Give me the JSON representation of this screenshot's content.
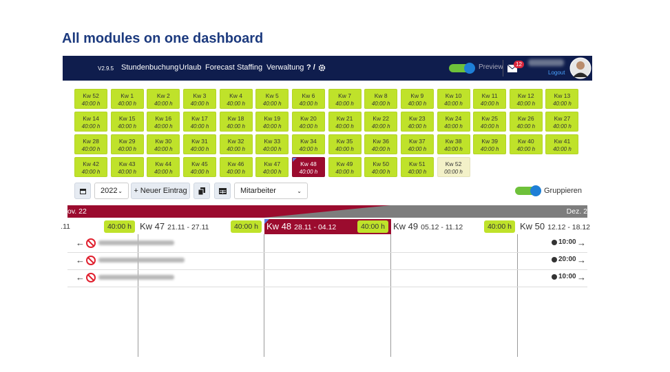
{
  "header": {
    "title": "All modules on one dashboard"
  },
  "nav": {
    "version": "V2.9.5",
    "items": [
      "Stundenbuchung",
      "Urlaub",
      "Forecast",
      "Staffing",
      "Verwaltung"
    ],
    "help": "? /",
    "preview": "Preview",
    "badge": "12",
    "logout": "Logout"
  },
  "weeks": [
    {
      "label": "Kw 52",
      "hours": "40:00 h",
      "color": "#bfe22a"
    },
    {
      "label": "Kw 1",
      "hours": "40:00 h",
      "color": "#bfe22a"
    },
    {
      "label": "Kw 2",
      "hours": "40:00 h",
      "color": "#bfe22a"
    },
    {
      "label": "Kw 3",
      "hours": "40:00 h",
      "color": "#bfe22a"
    },
    {
      "label": "Kw 4",
      "hours": "40:00 h",
      "color": "#bfe22a"
    },
    {
      "label": "Kw 5",
      "hours": "40:00 h",
      "color": "#bfe22a"
    },
    {
      "label": "Kw 6",
      "hours": "40:00 h",
      "color": "#bfe22a"
    },
    {
      "label": "Kw 7",
      "hours": "40:00 h",
      "color": "#bfe22a"
    },
    {
      "label": "Kw 8",
      "hours": "40:00 h",
      "color": "#bfe22a"
    },
    {
      "label": "Kw 9",
      "hours": "40:00 h",
      "color": "#bfe22a"
    },
    {
      "label": "Kw 10",
      "hours": "40:00 h",
      "color": "#bfe22a"
    },
    {
      "label": "Kw 11",
      "hours": "40:00 h",
      "color": "#bfe22a"
    },
    {
      "label": "Kw 12",
      "hours": "40:00 h",
      "color": "#bfe22a"
    },
    {
      "label": "Kw 13",
      "hours": "40:00 h",
      "color": "#bfe22a"
    },
    {
      "label": "Kw 14",
      "hours": "40:00 h",
      "color": "#bfe22a"
    },
    {
      "label": "Kw 15",
      "hours": "40:00 h",
      "color": "#bfe22a"
    },
    {
      "label": "Kw 16",
      "hours": "40:00 h",
      "color": "#bfe22a"
    },
    {
      "label": "Kw 17",
      "hours": "40:00 h",
      "color": "#bfe22a"
    },
    {
      "label": "Kw 18",
      "hours": "40:00 h",
      "color": "#bfe22a"
    },
    {
      "label": "Kw 19",
      "hours": "40:00 h",
      "color": "#bfe22a"
    },
    {
      "label": "Kw 20",
      "hours": "40:00 h",
      "color": "#bfe22a"
    },
    {
      "label": "Kw 21",
      "hours": "40:00 h",
      "color": "#bfe22a"
    },
    {
      "label": "Kw 22",
      "hours": "40:00 h",
      "color": "#bfe22a"
    },
    {
      "label": "Kw 23",
      "hours": "40:00 h",
      "color": "#bfe22a"
    },
    {
      "label": "Kw 24",
      "hours": "40:00 h",
      "color": "#bfe22a"
    },
    {
      "label": "Kw 25",
      "hours": "40:00 h",
      "color": "#bfe22a"
    },
    {
      "label": "Kw 26",
      "hours": "40:00 h",
      "color": "#bfe22a"
    },
    {
      "label": "Kw 27",
      "hours": "40:00 h",
      "color": "#bfe22a"
    },
    {
      "label": "Kw 28",
      "hours": "40:00 h",
      "color": "#bfe22a"
    },
    {
      "label": "Kw 29",
      "hours": "40:00 h",
      "color": "#bfe22a"
    },
    {
      "label": "Kw 30",
      "hours": "40:00 h",
      "color": "#bfe22a"
    },
    {
      "label": "Kw 31",
      "hours": "40:00 h",
      "color": "#bfe22a"
    },
    {
      "label": "Kw 32",
      "hours": "40:00 h",
      "color": "#bfe22a"
    },
    {
      "label": "Kw 33",
      "hours": "40:00 h",
      "color": "#bfe22a"
    },
    {
      "label": "Kw 34",
      "hours": "40:00 h",
      "color": "#bfe22a"
    },
    {
      "label": "Kw 35",
      "hours": "40:00 h",
      "color": "#bfe22a"
    },
    {
      "label": "Kw 36",
      "hours": "40:00 h",
      "color": "#bfe22a"
    },
    {
      "label": "Kw 37",
      "hours": "40:00 h",
      "color": "#bfe22a"
    },
    {
      "label": "Kw 38",
      "hours": "40:00 h",
      "color": "#bfe22a"
    },
    {
      "label": "Kw 39",
      "hours": "40:00 h",
      "color": "#bfe22a"
    },
    {
      "label": "Kw 40",
      "hours": "40:00 h",
      "color": "#bfe22a"
    },
    {
      "label": "Kw 41",
      "hours": "40:00 h",
      "color": "#bfe22a"
    },
    {
      "label": "Kw 42",
      "hours": "40:00 h",
      "color": "#bfe22a"
    },
    {
      "label": "Kw 43",
      "hours": "40:00 h",
      "color": "#bfe22a"
    },
    {
      "label": "Kw 44",
      "hours": "40:00 h",
      "color": "#bfe22a"
    },
    {
      "label": "Kw 45",
      "hours": "40:00 h",
      "color": "#bfe22a"
    },
    {
      "label": "Kw 46",
      "hours": "40:00 h",
      "color": "#bfe22a"
    },
    {
      "label": "Kw 47",
      "hours": "40:00 h",
      "color": "#bfe22a"
    },
    {
      "label": "Kw 48",
      "hours": "40:00 h",
      "color": "#9b0b2e"
    },
    {
      "label": "Kw 49",
      "hours": "40:00 h",
      "color": "#bfe22a"
    },
    {
      "label": "Kw 50",
      "hours": "40:00 h",
      "color": "#bfe22a"
    },
    {
      "label": "Kw 51",
      "hours": "40:00 h",
      "color": "#bfe22a"
    },
    {
      "label": "Kw 52",
      "hours": "00:00 h",
      "color": "#f3f1c8"
    }
  ],
  "toolbar": {
    "year": "2022",
    "new_entry": "+ Neuer Eintrag",
    "filter": "Mitarbeiter",
    "group": "Gruppieren"
  },
  "timeline": {
    "months": [
      "ov. 22",
      "Dez. 2"
    ],
    "weeks": [
      {
        "range": ".11",
        "hours": "40:00 h"
      },
      {
        "label": "Kw 47",
        "range": "21.11 - 27.11",
        "hours": "40:00 h"
      },
      {
        "label": "Kw 48",
        "range": "28.11 - 04.12",
        "hours": "40:00 h"
      },
      {
        "label": "Kw 49",
        "range": "05.12 - 11.12",
        "hours": "40:00 h"
      },
      {
        "label": "Kw 50",
        "range": "12.12 - 18.12"
      }
    ],
    "entries": [
      {
        "time": "10:00"
      },
      {
        "time": "20:00"
      },
      {
        "time": "10:00"
      }
    ]
  }
}
